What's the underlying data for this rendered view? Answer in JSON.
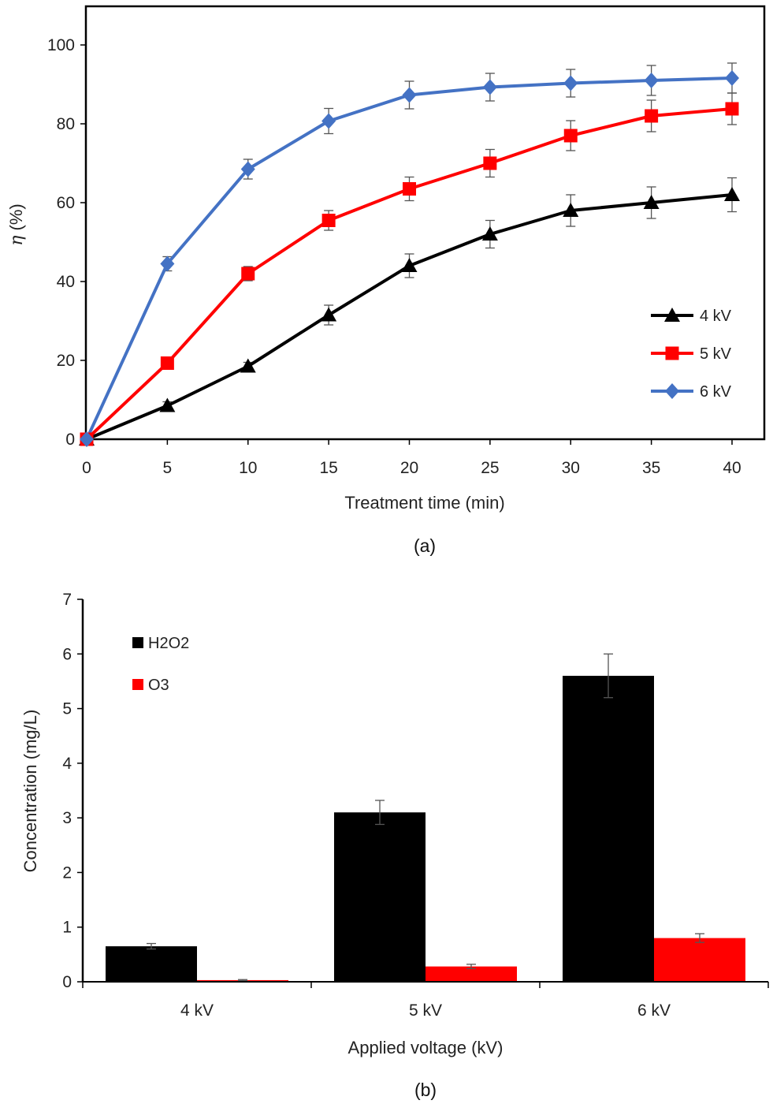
{
  "chart_data": [
    {
      "type": "line",
      "caption": "(a)",
      "xlabel": "Treatment time (min)",
      "ylabel_symbol": "η",
      "ylabel_unit": " (%)",
      "x": [
        0,
        5,
        10,
        15,
        20,
        25,
        30,
        35,
        40
      ],
      "xlim": [
        0,
        40
      ],
      "ylim": [
        0,
        100
      ],
      "xticks": [
        0,
        5,
        10,
        15,
        20,
        25,
        30,
        35,
        40
      ],
      "yticks": [
        0,
        20,
        40,
        60,
        80,
        100
      ],
      "grid": false,
      "legend_position": "bottom-right",
      "series": [
        {
          "name": "4 kV",
          "color": "#000000",
          "marker": "triangle",
          "values": [
            0,
            8.5,
            18.5,
            31.5,
            44,
            52,
            58,
            60,
            62
          ],
          "errors": [
            0,
            1,
            1,
            2.5,
            3,
            3.5,
            4,
            4,
            4.3
          ]
        },
        {
          "name": "5 kV",
          "color": "#ff0000",
          "marker": "square",
          "values": [
            0,
            19.3,
            42,
            55.5,
            63.5,
            70,
            77,
            82,
            83.8
          ],
          "errors": [
            0,
            1,
            1.8,
            2.5,
            3,
            3.5,
            3.8,
            4,
            4
          ]
        },
        {
          "name": "6 kV",
          "color": "#4472c4",
          "marker": "diamond",
          "values": [
            0,
            44.5,
            68.5,
            80.7,
            87.3,
            89.3,
            90.3,
            91,
            91.6
          ],
          "errors": [
            0,
            1.8,
            2.5,
            3.2,
            3.5,
            3.5,
            3.5,
            3.8,
            3.8
          ]
        }
      ]
    },
    {
      "type": "bar",
      "caption": "(b)",
      "xlabel": "Applied voltage (kV)",
      "ylabel": "Concentration (mg/L)",
      "categories": [
        "4 kV",
        "5 kV",
        "6 kV"
      ],
      "ylim": [
        0,
        7
      ],
      "yticks": [
        0,
        1,
        2,
        3,
        4,
        5,
        6,
        7
      ],
      "grid": false,
      "legend_position": "top-left",
      "series": [
        {
          "name": "H2O2",
          "color": "#000000",
          "values": [
            0.65,
            3.1,
            5.6
          ],
          "errors": [
            0.05,
            0.22,
            0.4
          ]
        },
        {
          "name": "O3",
          "color": "#ff0000",
          "values": [
            0.03,
            0.28,
            0.8
          ],
          "errors": [
            0.01,
            0.04,
            0.08
          ]
        }
      ]
    }
  ]
}
